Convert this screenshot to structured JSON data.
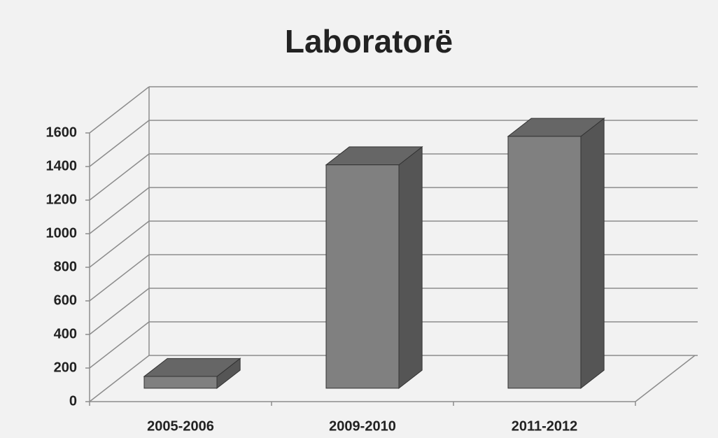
{
  "chart_data": {
    "type": "bar3d",
    "title": "Laboratorë",
    "categories": [
      "2005-2006",
      "2009-2010",
      "2011-2012"
    ],
    "values": [
      70,
      1330,
      1500
    ],
    "color": "#808080",
    "ylim": [
      0,
      1600
    ],
    "yticks": [
      0,
      200,
      400,
      600,
      800,
      1000,
      1200,
      1400,
      1600
    ],
    "grid": true
  }
}
